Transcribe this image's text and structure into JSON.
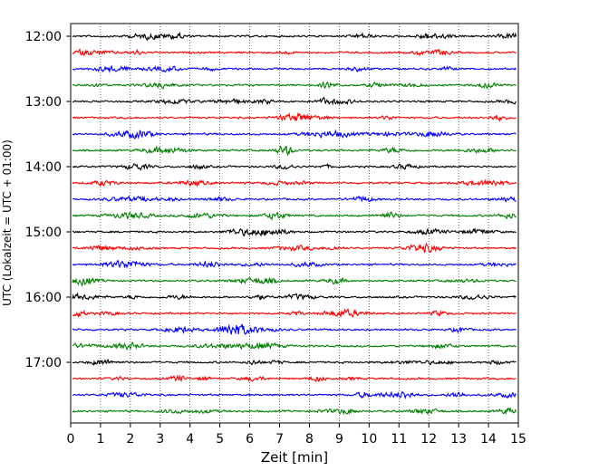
{
  "chart_data": {
    "type": "line",
    "title": "",
    "xlabel": "Zeit  [min]",
    "ylabel": "UTC (Lokalzeit = UTC + 01:00)",
    "xlim": [
      0,
      15
    ],
    "x_ticks": [
      "0",
      "1",
      "2",
      "3",
      "4",
      "5",
      "6",
      "7",
      "8",
      "9",
      "10",
      "11",
      "12",
      "13",
      "14",
      "15"
    ],
    "y_ticks": [
      "12:00",
      "13:00",
      "14:00",
      "15:00",
      "16:00",
      "17:00"
    ],
    "grid": {
      "x": true,
      "y": false,
      "style": "dotted"
    },
    "trace_colors": [
      "#000000",
      "#ff0000",
      "#0000ff",
      "#008000"
    ],
    "row_interval_minutes": 15,
    "row_start": "12:00",
    "row_count": 24
  }
}
